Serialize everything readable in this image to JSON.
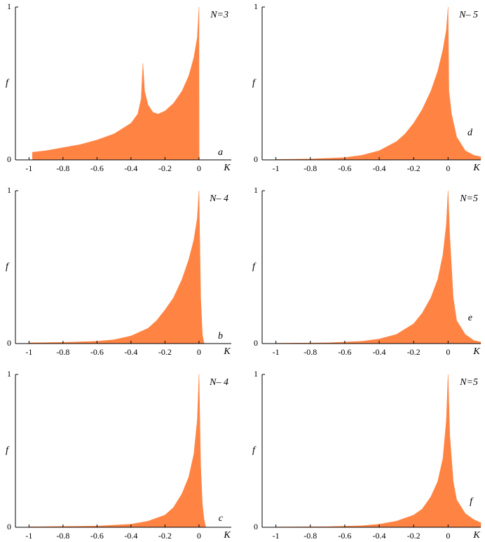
{
  "chart_data": [
    {
      "type": "area",
      "annotation": "N=3",
      "panel_label": "a",
      "xlabel": "K",
      "ylabel": "f",
      "color": "#ff8444",
      "x": [
        -0.98,
        -0.9,
        -0.8,
        -0.7,
        -0.6,
        -0.5,
        -0.4,
        -0.36,
        -0.34,
        -0.33,
        -0.32,
        -0.3,
        -0.27,
        -0.24,
        -0.2,
        -0.15,
        -0.1,
        -0.06,
        -0.03,
        -0.01,
        0,
        0.001,
        0.1
      ],
      "values": [
        0.05,
        0.06,
        0.08,
        0.1,
        0.13,
        0.17,
        0.24,
        0.3,
        0.4,
        0.63,
        0.45,
        0.36,
        0.31,
        0.3,
        0.32,
        0.37,
        0.45,
        0.55,
        0.67,
        0.8,
        1,
        0,
        0
      ],
      "xlim": [
        -1.08,
        0.19
      ],
      "ylim": [
        0,
        1
      ],
      "xticks": [
        -1,
        -0.8,
        -0.6,
        -0.4,
        -0.2,
        0
      ],
      "yticks": [
        0,
        1
      ]
    },
    {
      "type": "area",
      "annotation": "N– 4",
      "panel_label": "b",
      "xlabel": "K",
      "ylabel": "f",
      "color": "#ff8444",
      "x": [
        -1,
        -0.8,
        -0.6,
        -0.5,
        -0.4,
        -0.3,
        -0.25,
        -0.2,
        -0.15,
        -0.1,
        -0.06,
        -0.03,
        -0.01,
        0,
        0.01,
        0.02,
        0.03,
        0.1
      ],
      "values": [
        0.005,
        0.008,
        0.015,
        0.025,
        0.05,
        0.1,
        0.15,
        0.22,
        0.3,
        0.42,
        0.55,
        0.68,
        0.82,
        1,
        0.3,
        0.06,
        0,
        0
      ],
      "xlim": [
        -1.08,
        0.19
      ],
      "ylim": [
        0,
        1
      ],
      "xticks": [
        -1,
        -0.8,
        -0.6,
        -0.4,
        -0.2,
        0
      ],
      "yticks": [
        0,
        1
      ]
    },
    {
      "type": "area",
      "annotation": "N– 4",
      "panel_label": "c",
      "xlabel": "K",
      "ylabel": "f",
      "color": "#ff8444",
      "x": [
        -1,
        -0.6,
        -0.4,
        -0.3,
        -0.2,
        -0.15,
        -0.1,
        -0.06,
        -0.03,
        -0.01,
        0,
        0.01,
        0.02,
        0.03,
        0.04,
        0.1
      ],
      "values": [
        0.003,
        0.008,
        0.02,
        0.04,
        0.08,
        0.13,
        0.22,
        0.33,
        0.48,
        0.7,
        1,
        0.4,
        0.15,
        0.05,
        0,
        0
      ],
      "xlim": [
        -1.08,
        0.19
      ],
      "ylim": [
        0,
        1
      ],
      "xticks": [
        -1,
        -0.8,
        -0.6,
        -0.4,
        -0.2,
        0
      ],
      "yticks": [
        0,
        1
      ]
    },
    {
      "type": "area",
      "annotation": "N– 5",
      "panel_label": "d",
      "xlabel": "K",
      "ylabel": "f",
      "color": "#ff8444",
      "x": [
        -1,
        -0.8,
        -0.6,
        -0.5,
        -0.4,
        -0.3,
        -0.25,
        -0.2,
        -0.15,
        -0.1,
        -0.06,
        -0.03,
        -0.01,
        0,
        0.005,
        0.02,
        0.05,
        0.1,
        0.15,
        0.19
      ],
      "values": [
        0.003,
        0.006,
        0.015,
        0.03,
        0.06,
        0.12,
        0.17,
        0.24,
        0.33,
        0.45,
        0.58,
        0.72,
        0.85,
        1,
        0.45,
        0.3,
        0.15,
        0.06,
        0.03,
        0.02
      ],
      "xlim": [
        -1.08,
        0.19
      ],
      "ylim": [
        0,
        1
      ],
      "xticks": [
        -1,
        -0.8,
        -0.6,
        -0.4,
        -0.2,
        0
      ],
      "yticks": [
        0,
        1
      ]
    },
    {
      "type": "area",
      "annotation": "N=5",
      "panel_label": "e",
      "xlabel": "K",
      "ylabel": "f",
      "color": "#ff8444",
      "x": [
        -1,
        -0.7,
        -0.5,
        -0.4,
        -0.3,
        -0.2,
        -0.15,
        -0.1,
        -0.06,
        -0.03,
        -0.01,
        0,
        0.01,
        0.03,
        0.05,
        0.1,
        0.15,
        0.19
      ],
      "values": [
        0.002,
        0.005,
        0.015,
        0.03,
        0.06,
        0.13,
        0.2,
        0.3,
        0.42,
        0.58,
        0.78,
        1,
        0.7,
        0.3,
        0.15,
        0.06,
        0.02,
        0.01
      ],
      "xlim": [
        -1.08,
        0.19
      ],
      "ylim": [
        0,
        1
      ],
      "xticks": [
        -1,
        -0.8,
        -0.6,
        -0.4,
        -0.2,
        0
      ],
      "yticks": [
        0,
        1
      ]
    },
    {
      "type": "area",
      "annotation": "N=5",
      "panel_label": "f",
      "xlabel": "K",
      "ylabel": "f",
      "color": "#ff8444",
      "x": [
        -1,
        -0.7,
        -0.5,
        -0.4,
        -0.3,
        -0.2,
        -0.15,
        -0.1,
        -0.06,
        -0.03,
        -0.01,
        0,
        0.01,
        0.03,
        0.05,
        0.1,
        0.15,
        0.19
      ],
      "values": [
        0.002,
        0.004,
        0.01,
        0.02,
        0.04,
        0.08,
        0.12,
        0.2,
        0.3,
        0.45,
        0.7,
        1,
        0.6,
        0.3,
        0.18,
        0.09,
        0.05,
        0.03
      ],
      "xlim": [
        -1.08,
        0.19
      ],
      "ylim": [
        0,
        1
      ],
      "xticks": [
        -1,
        -0.8,
        -0.6,
        -0.4,
        -0.2,
        0
      ],
      "yticks": [
        0,
        1
      ]
    }
  ]
}
